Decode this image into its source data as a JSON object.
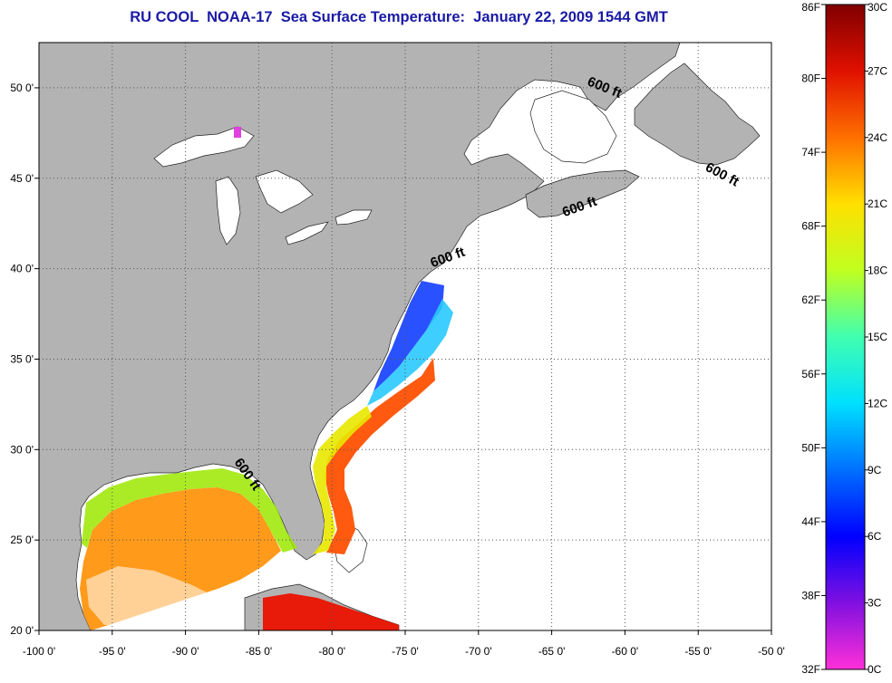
{
  "title": "RU COOL  NOAA-17  Sea Surface Temperature:  January 22, 2009 1544 GMT",
  "map": {
    "lon_range": [
      -100,
      -50
    ],
    "lat_range": [
      20,
      52.5
    ],
    "lon_ticks": [
      {
        "value": -100,
        "label": "-100 0'"
      },
      {
        "value": -95,
        "label": "-95 0'"
      },
      {
        "value": -90,
        "label": "-90 0'"
      },
      {
        "value": -85,
        "label": "-85 0'"
      },
      {
        "value": -80,
        "label": "-80 0'"
      },
      {
        "value": -75,
        "label": "-75 0'"
      },
      {
        "value": -70,
        "label": "-70 0'"
      },
      {
        "value": -65,
        "label": "-65 0'"
      },
      {
        "value": -60,
        "label": "-60 0'"
      },
      {
        "value": -55,
        "label": "-55 0'"
      },
      {
        "value": -50,
        "label": "-50 0'"
      }
    ],
    "lat_ticks": [
      {
        "value": 20,
        "label": "20 0'"
      },
      {
        "value": 25,
        "label": "25 0'"
      },
      {
        "value": 30,
        "label": "30 0'"
      },
      {
        "value": 35,
        "label": "35 0'"
      },
      {
        "value": 40,
        "label": "40 0'"
      },
      {
        "value": 45,
        "label": "45 0'"
      },
      {
        "value": 50,
        "label": "50 0'"
      }
    ],
    "grid": "dotted",
    "land_color": "#b3b3b3",
    "ocean_color": "#ffffff",
    "contour_labels": [
      {
        "text": "600 ft",
        "lon": -61.5,
        "lat": 49.8,
        "rotate": 22
      },
      {
        "text": "600 ft",
        "lon": -53.5,
        "lat": 45.0,
        "rotate": 28
      },
      {
        "text": "600 ft",
        "lon": -63.0,
        "lat": 43.2,
        "rotate": -20
      },
      {
        "text": "600 ft",
        "lon": -72.0,
        "lat": 40.4,
        "rotate": -20
      },
      {
        "text": "600 ft",
        "lon": -86.0,
        "lat": 28.5,
        "rotate": 55
      }
    ]
  },
  "colorbar": {
    "f_labels": [
      "86F",
      "80F",
      "74F",
      "68F",
      "62F",
      "56F",
      "50F",
      "44F",
      "38F",
      "32F"
    ],
    "c_labels": [
      "30C",
      "27C",
      "24C",
      "21C",
      "18C",
      "15C",
      "12C",
      "9C",
      "6C",
      "3C",
      "0C"
    ],
    "stops": [
      "#ff30d8",
      "#8010e0",
      "#0000ff",
      "#0070ff",
      "#00e0ff",
      "#40ffb0",
      "#c0ff20",
      "#ffe000",
      "#ff7000",
      "#e01000",
      "#800000"
    ]
  }
}
